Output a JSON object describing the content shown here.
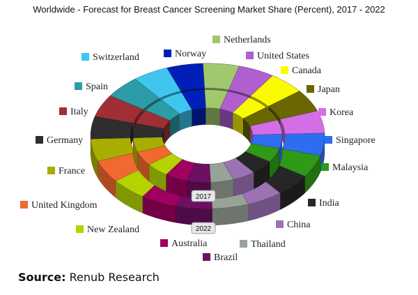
{
  "chart_data": {
    "type": "pie",
    "subtype": "3d-multi-level-doughnut",
    "title": "Worldwide - Forecast for Breast Cancer Screening Market Share (Percent), 2017 - 2022",
    "rings": [
      "2017",
      "2022"
    ],
    "categories": [
      "Netherlands",
      "United States",
      "Canada",
      "Japan",
      "Korea",
      "Singapore",
      "Malaysia",
      "India",
      "China",
      "Thailand",
      "Brazil",
      "Australia",
      "New Zealand",
      "United Kingdom",
      "France",
      "Germany",
      "Italy",
      "Spain",
      "Switzerland",
      "Norway"
    ],
    "colors": [
      "#a2c86e",
      "#b05fd0",
      "#fafa00",
      "#6b6700",
      "#d66de8",
      "#2f6df0",
      "#2e9a17",
      "#262626",
      "#9c72b4",
      "#97a397",
      "#6d0f62",
      "#a0005f",
      "#b4d300",
      "#f06a30",
      "#a8ad00",
      "#2e2e2e",
      "#a02f34",
      "#2c9ca6",
      "#3ec6ee",
      "#001fb8"
    ],
    "series": [
      {
        "name": "2017",
        "values": [
          5,
          5,
          5,
          5,
          5,
          5,
          5,
          5,
          5,
          5,
          5,
          5,
          5,
          5,
          5,
          5,
          5,
          5,
          5,
          5
        ]
      },
      {
        "name": "2022",
        "values": [
          5,
          5,
          5,
          5,
          5,
          5,
          5,
          5,
          5,
          5,
          5,
          5,
          5,
          5,
          5,
          5,
          5,
          5,
          5,
          5
        ]
      }
    ],
    "legend_placement": "around"
  },
  "source": {
    "label": "Source:",
    "text": " Renub Research"
  }
}
